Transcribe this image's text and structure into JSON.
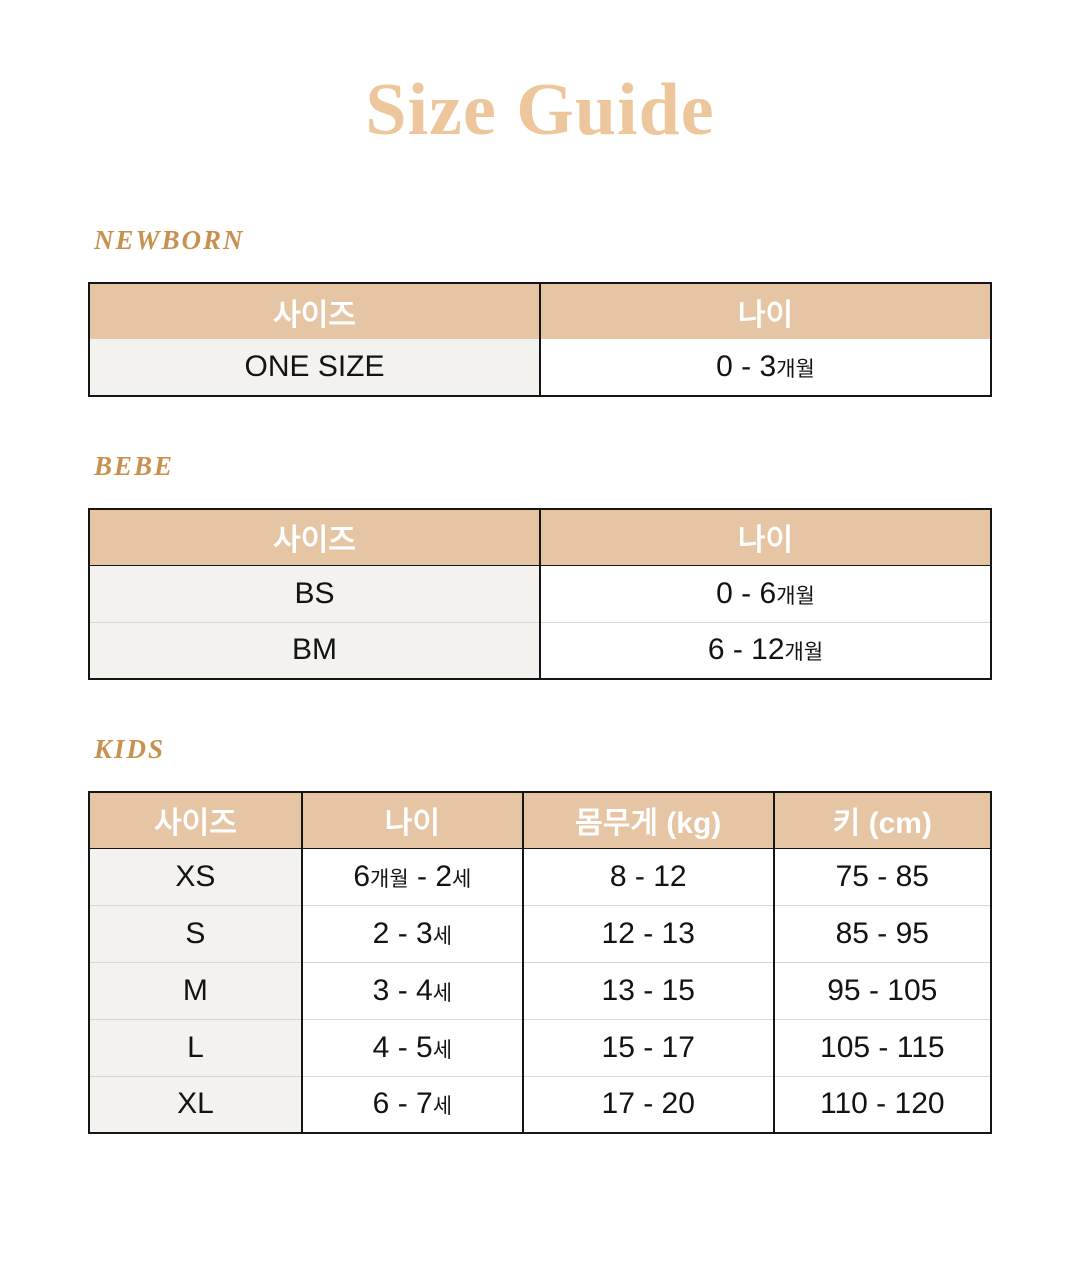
{
  "title": "Size Guide",
  "colors": {
    "title": "#EDC69C",
    "section_heading": "#C8914F",
    "table_header_bg": "#E5C5A3",
    "table_header_text": "#FFFFFF",
    "first_column_bg": "#F4F2EE",
    "table_border": "#151515",
    "row_divider": "#DAD7D1"
  },
  "sections": [
    {
      "heading": "NEWBORN",
      "table": {
        "columns": [
          "사이즈",
          "나이"
        ],
        "rows": [
          [
            "ONE SIZE",
            "0 - 3개월"
          ]
        ]
      }
    },
    {
      "heading": "BEBE",
      "table": {
        "columns": [
          "사이즈",
          "나이"
        ],
        "rows": [
          [
            "BS",
            "0 - 6개월"
          ],
          [
            "BM",
            "6 - 12개월"
          ]
        ]
      }
    },
    {
      "heading": "KIDS",
      "table": {
        "columns": [
          "사이즈",
          "나이",
          "몸무게 (kg)",
          "키 (cm)"
        ],
        "rows": [
          [
            "XS",
            "6개월 - 2세",
            "8 - 12",
            "75 - 85"
          ],
          [
            "S",
            "2 - 3세",
            "12 - 13",
            "85 - 95"
          ],
          [
            "M",
            "3 - 4세",
            "13 - 15",
            "95 - 105"
          ],
          [
            "L",
            "4 - 5세",
            "15 - 17",
            "105 - 115"
          ],
          [
            "XL",
            "6 - 7세",
            "17 - 20",
            "110 - 120"
          ]
        ]
      }
    }
  ]
}
